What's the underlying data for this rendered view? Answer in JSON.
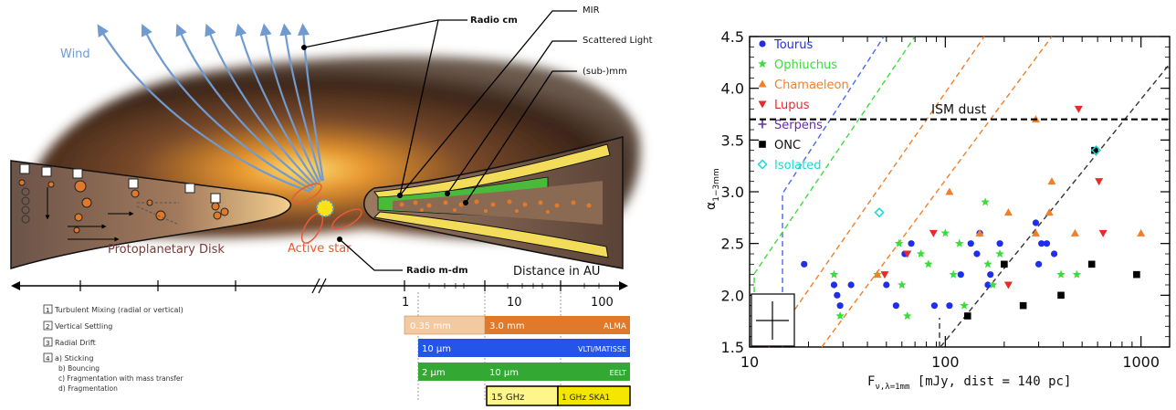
{
  "schematic": {
    "labels": {
      "wind": "Wind",
      "radio_cm": "Radio cm",
      "mir": "MIR",
      "scattered_light": "Scattered Light",
      "submm": "(sub-)mm",
      "protoplanetary_disk": "Protoplanetary Disk",
      "active_star": "Active star",
      "radio_mdm": "Radio m-dm",
      "distance_axis": "Distance in AU"
    },
    "axis_ticks": [
      "1",
      "10",
      "100"
    ],
    "processes": [
      {
        "num": "1",
        "text": "Turbulent Mixing (radial or vertical)"
      },
      {
        "num": "2",
        "text": "Vertical Settling"
      },
      {
        "num": "3",
        "text": "Radial Drift"
      },
      {
        "num": "4",
        "text": "a) Sticking"
      }
    ],
    "process_subitems": [
      "b) Bouncing",
      "c) Fragmentation with mass transfer",
      "d) Fragmentation"
    ],
    "bars": {
      "alma_left": "0.35 mm",
      "alma_right": "3.0 mm",
      "alma_name": "ALMA",
      "vlti_left": "10 µm",
      "vlti_name": "VLTI/MATISSE",
      "eelt_left": "2 µm",
      "eelt_mid": "10 µm",
      "eelt_name": "EELT",
      "ska_left": "15 GHz",
      "ska_right": "1 GHz SKA1"
    },
    "colors": {
      "alma_light": "#f2c9a0",
      "alma_dark": "#e07a2a",
      "vlti": "#2255e8",
      "eelt": "#33a833",
      "ska_light": "#fff68a",
      "ska_dark": "#f5e600",
      "wind": "#6f9bd0"
    }
  },
  "chart_data": {
    "type": "scatter",
    "xlabel": "F ν,λ=1mm [mJy, dist = 140 pc]",
    "ylabel": "α 1-3mm",
    "x_scale": "log",
    "xlim": [
      10,
      1400
    ],
    "ylim": [
      1.5,
      4.5
    ],
    "x_ticks": [
      "10",
      "100",
      "1000"
    ],
    "y_ticks": [
      "1.5",
      "2.0",
      "2.5",
      "3.0",
      "3.5",
      "4.0",
      "4.5"
    ],
    "annotation": "ISM dust",
    "ism_alpha": 3.7,
    "legend_position": "top-left",
    "series": [
      {
        "name": "Tourus",
        "color": "#1f2fe8",
        "marker": "circle",
        "points": [
          [
            19,
            2.3
          ],
          [
            27,
            2.1
          ],
          [
            28,
            2.0
          ],
          [
            29,
            1.9
          ],
          [
            33,
            2.1
          ],
          [
            50,
            2.1
          ],
          [
            56,
            1.9
          ],
          [
            62,
            2.4
          ],
          [
            67,
            2.5
          ],
          [
            88,
            1.9
          ],
          [
            105,
            1.9
          ],
          [
            120,
            2.2
          ],
          [
            135,
            2.5
          ],
          [
            145,
            2.4
          ],
          [
            150,
            2.6
          ],
          [
            165,
            2.1
          ],
          [
            170,
            2.2
          ],
          [
            190,
            2.5
          ],
          [
            200,
            2.3
          ],
          [
            290,
            2.7
          ],
          [
            300,
            2.3
          ],
          [
            310,
            2.5
          ],
          [
            330,
            2.5
          ],
          [
            360,
            2.4
          ]
        ]
      },
      {
        "name": "Ophiuchus",
        "color": "#3ddc3d",
        "marker": "star",
        "points": [
          [
            27,
            2.2
          ],
          [
            29,
            1.8
          ],
          [
            45,
            2.2
          ],
          [
            58,
            2.5
          ],
          [
            60,
            2.1
          ],
          [
            64,
            1.8
          ],
          [
            75,
            2.4
          ],
          [
            82,
            2.3
          ],
          [
            100,
            2.6
          ],
          [
            110,
            2.2
          ],
          [
            118,
            2.5
          ],
          [
            125,
            1.9
          ],
          [
            160,
            2.9
          ],
          [
            165,
            2.3
          ],
          [
            175,
            2.1
          ],
          [
            190,
            2.4
          ],
          [
            390,
            2.2
          ],
          [
            470,
            2.2
          ]
        ]
      },
      {
        "name": "Chamaeleon",
        "color": "#f07f2a",
        "marker": "triangle-up",
        "points": [
          [
            45,
            2.2
          ],
          [
            105,
            3.0
          ],
          [
            150,
            2.6
          ],
          [
            210,
            2.8
          ],
          [
            290,
            3.7
          ],
          [
            290,
            2.6
          ],
          [
            340,
            2.8
          ],
          [
            350,
            3.1
          ],
          [
            460,
            2.6
          ],
          [
            1000,
            2.6
          ]
        ]
      },
      {
        "name": "Lupus",
        "color": "#e82a2a",
        "marker": "triangle-down",
        "points": [
          [
            49,
            2.2
          ],
          [
            64,
            2.4
          ],
          [
            87,
            2.6
          ],
          [
            210,
            2.1
          ],
          [
            480,
            3.8
          ],
          [
            610,
            3.1
          ],
          [
            640,
            2.6
          ]
        ]
      },
      {
        "name": "Serpens",
        "color": "#6a2ab0",
        "marker": "plus",
        "points": []
      },
      {
        "name": "ONC",
        "color": "#000000",
        "marker": "square",
        "points": [
          [
            130,
            1.8
          ],
          [
            200,
            2.3
          ],
          [
            250,
            1.9
          ],
          [
            390,
            2.0
          ],
          [
            560,
            2.3
          ],
          [
            580,
            3.4
          ],
          [
            950,
            2.2
          ]
        ]
      },
      {
        "name": "Isolated",
        "color": "#19d8d8",
        "marker": "diamond",
        "points": [
          [
            46,
            2.8
          ],
          [
            590,
            3.4
          ]
        ]
      }
    ]
  }
}
